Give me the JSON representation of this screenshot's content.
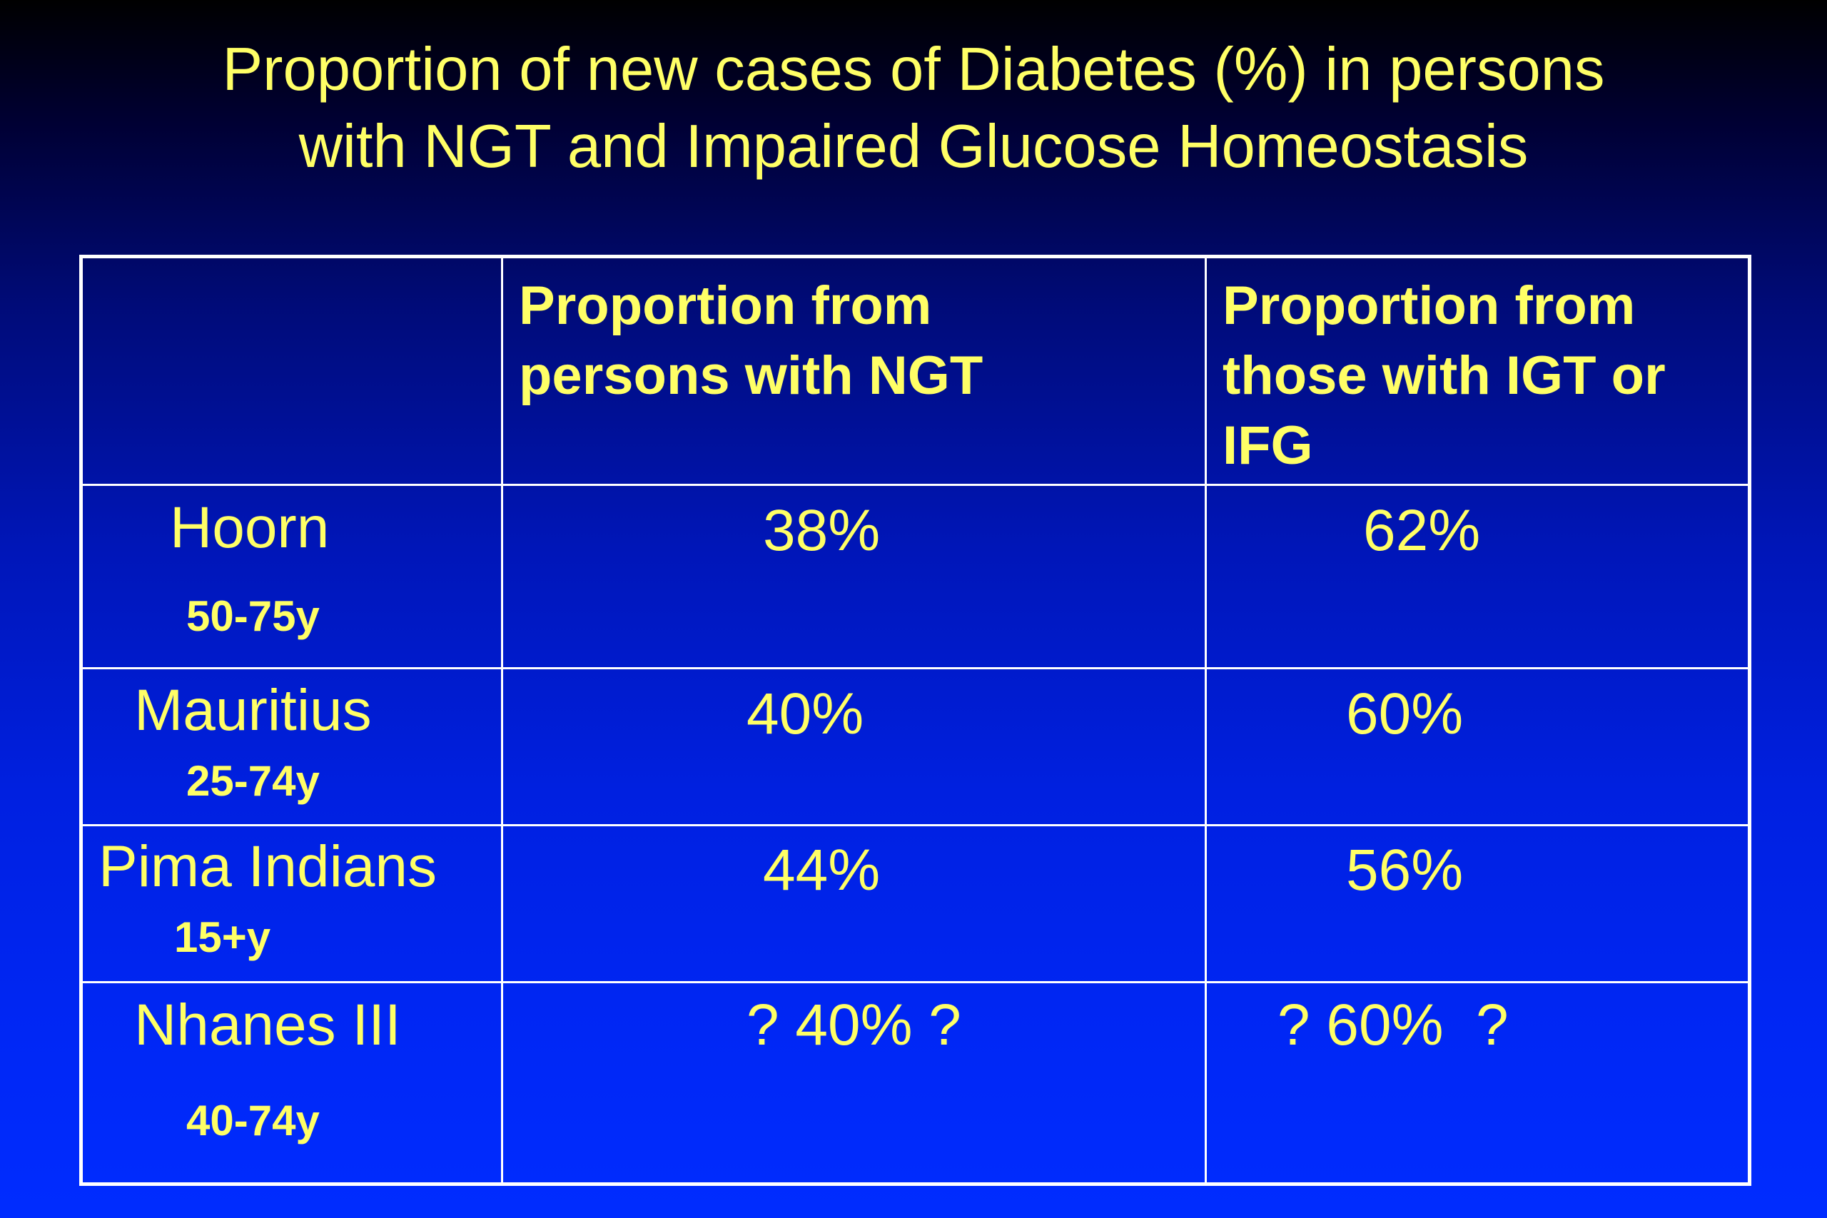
{
  "slide": {
    "title_line1": "Proportion of new cases of Diabetes (%) in persons",
    "title_line2": "with NGT and Impaired Glucose Homeostasis"
  },
  "table": {
    "header": {
      "col1": "",
      "col2_line1": "Proportion from",
      "col2_line2": "persons with NGT",
      "col3_line1": "Proportion from",
      "col3_line2": "those with IGT or",
      "col3_line3": "IFG"
    },
    "rows": [
      {
        "name": "Hoorn",
        "age": "50-75y",
        "ngt": "38%",
        "igt_ifg": "62%"
      },
      {
        "name": "Mauritius",
        "age": "25-74y",
        "ngt": "40%",
        "igt_ifg": "60%"
      },
      {
        "name": "Pima Indians",
        "age": "15+y",
        "ngt": "44%",
        "igt_ifg": "56%"
      },
      {
        "name": "Nhanes III",
        "age": "40-74y",
        "ngt": "? 40% ?",
        "igt_ifg": "? 60%  ?"
      }
    ]
  },
  "colors": {
    "text": "#ffff66",
    "grid": "#ffffff",
    "background_top": "#000000",
    "background_bottom": "#002cff"
  }
}
